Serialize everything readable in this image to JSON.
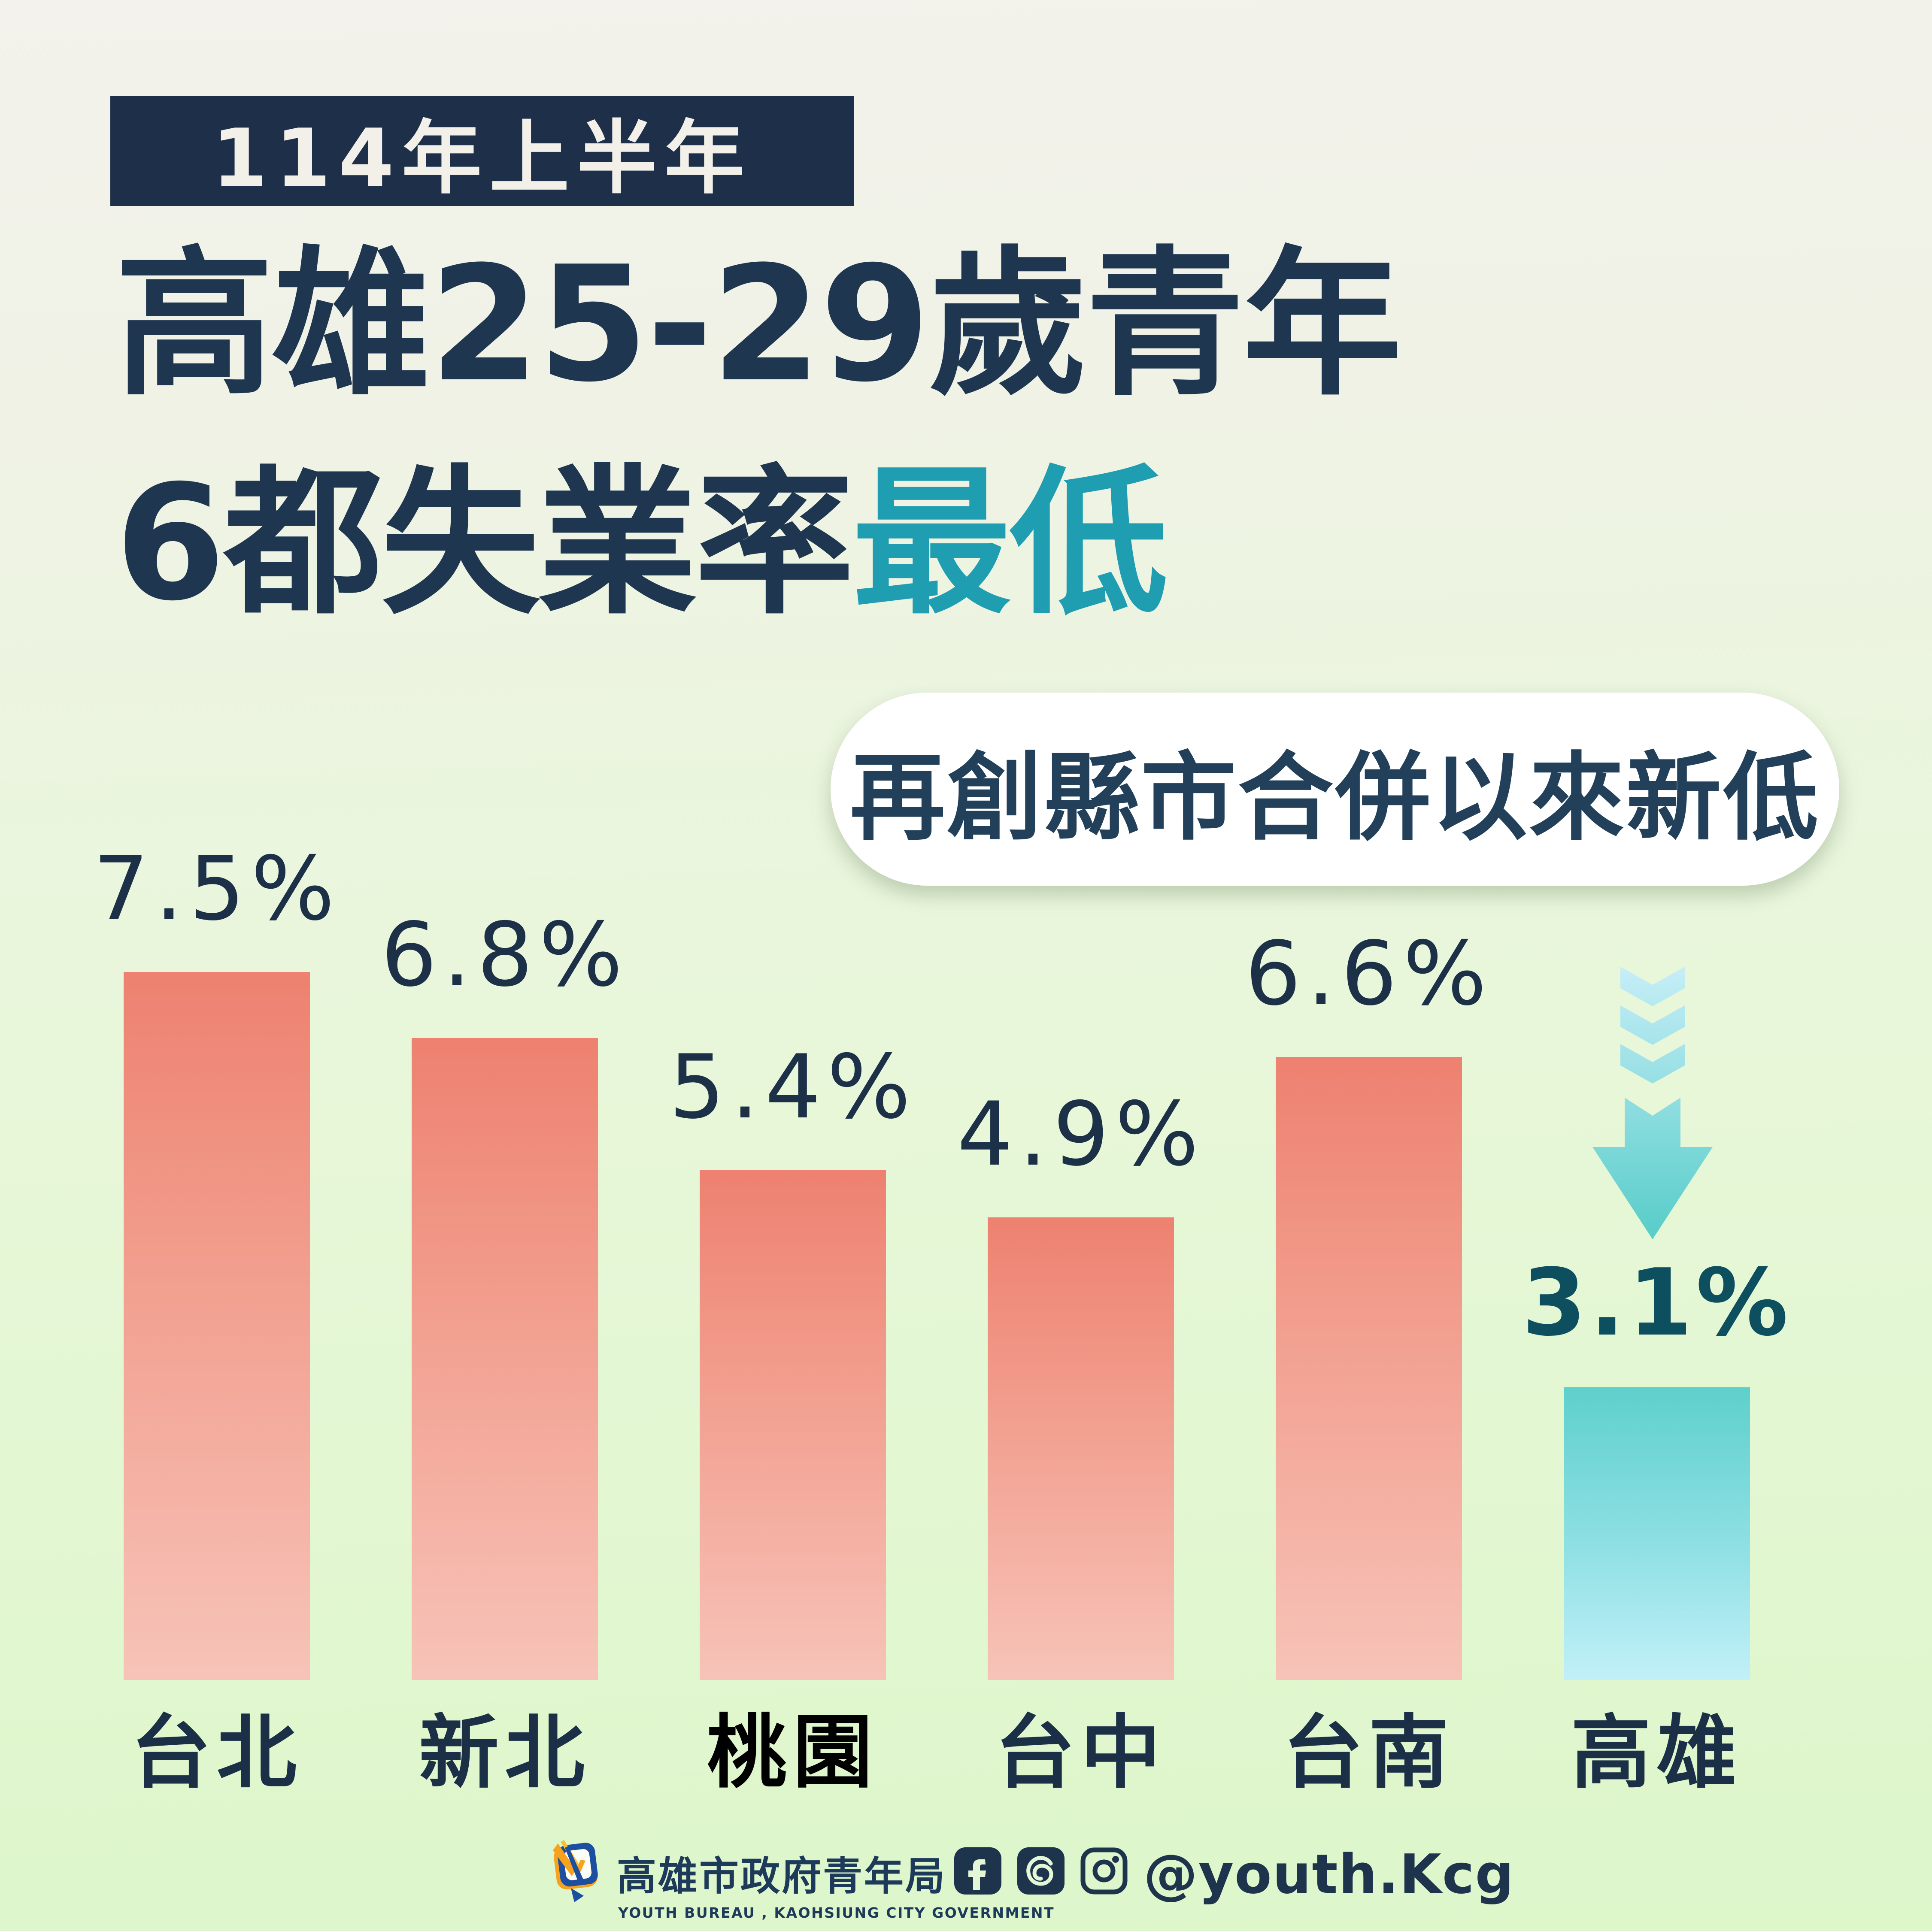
{
  "header": {
    "badge": "114年上半年",
    "title_line1": "高雄25-29歲青年",
    "title_line2_normal": "6都失業率",
    "title_line2_accent": "最低",
    "callout": "再創縣市合併以來新低"
  },
  "chart_data": {
    "type": "bar",
    "title": "114年上半年 高雄25-29歲青年 6都失業率最低",
    "categories": [
      "台北",
      "新北",
      "桃園",
      "台中",
      "台南",
      "高雄"
    ],
    "values": [
      7.5,
      6.8,
      5.4,
      4.9,
      6.6,
      3.1
    ],
    "value_labels": [
      "7.5%",
      "6.8%",
      "5.4%",
      "4.9%",
      "6.6%",
      "3.1%"
    ],
    "highlight_index": 5,
    "emphasized_category_index": 2,
    "xlabel": "",
    "ylabel": "",
    "grid": false,
    "legend": "none",
    "annotation_icon": "triple-chevron-down-arrow",
    "bar_colors": {
      "normal_top": "#ee8170",
      "normal_bottom": "#f7c3b8",
      "highlight_top": "#5ed0cc",
      "highlight_bottom": "#c2f0f8"
    },
    "value_label_color": "#1c3148",
    "highlight_value_label_color": "#0d4f5e"
  },
  "footer": {
    "logo": "youth-bureau-emblem",
    "org_name": "高雄市政府青年局",
    "org_name_en": "YOUTH BUREAU , KAOHSIUNG CITY GOVERNMENT",
    "social_icons": [
      "facebook-icon",
      "threads-icon",
      "instagram-icon"
    ],
    "social_handle": "@youth.Kcg"
  },
  "colors": {
    "background_top": "#f3f2ec",
    "background_bottom": "#ddf6ca",
    "navy": "#1f3650",
    "badge_background": "#1e3049",
    "badge_text": "#f2f0e9",
    "accent_teal": "#1f9eb2",
    "pill_background": "#ffffff",
    "arrow_gradient_top": "#c7eef8",
    "arrow_gradient_bottom": "#55ccc8",
    "logo_blue": "#1d4fa1",
    "logo_orange": "#f6a21c"
  }
}
